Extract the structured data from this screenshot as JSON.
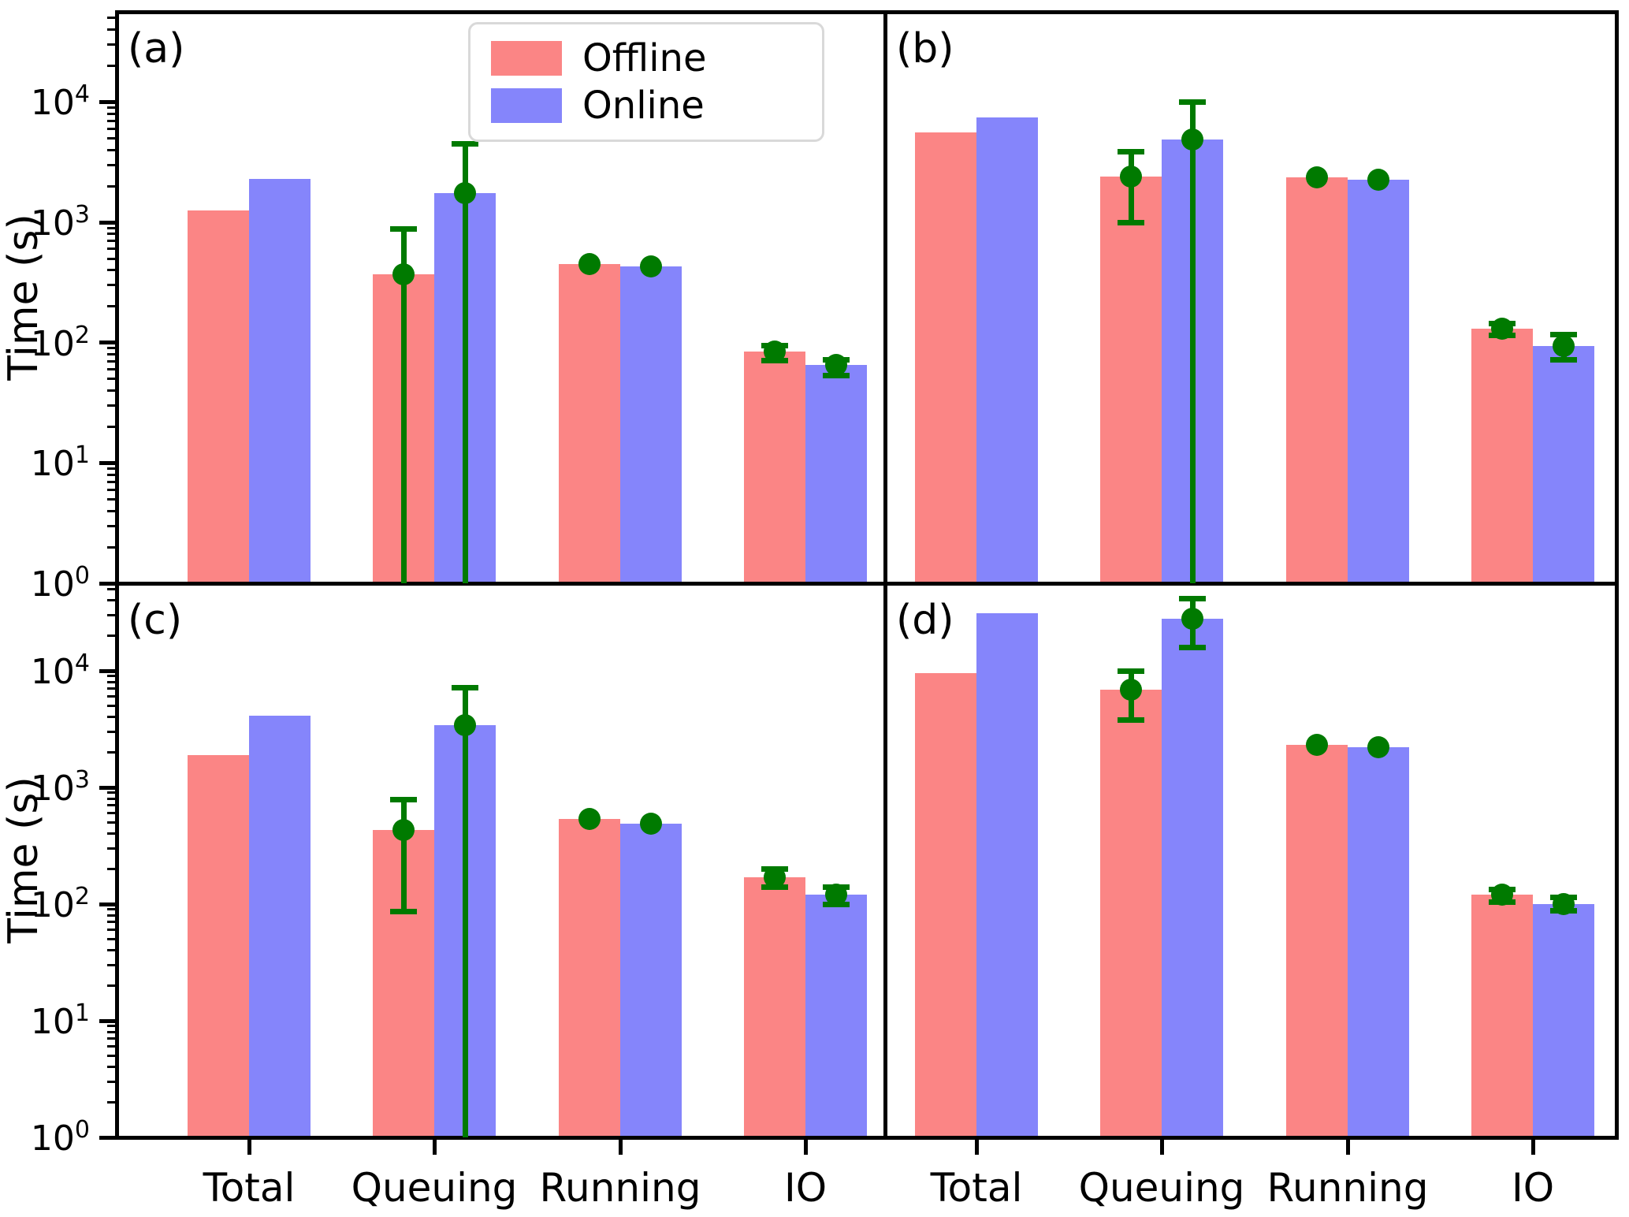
{
  "figure": {
    "ylabel": "Time (s)",
    "colors": {
      "offline_bar": "#fb8585",
      "online_bar": "#8585fb",
      "error_green": "#007a00",
      "axis": "#000000",
      "legend_border": "#d9d9d9"
    },
    "legend": {
      "items": [
        {
          "label": "Offline",
          "color": "#fb8585"
        },
        {
          "label": "Online",
          "color": "#8585fb"
        }
      ]
    }
  },
  "chart_data": {
    "type": "bar",
    "title": "",
    "xlabel": "",
    "ylabel": "Time (s)",
    "log_scale_y": true,
    "ylim": [
      1,
      56000
    ],
    "ytick_exponents": [
      0,
      1,
      2,
      3,
      4
    ],
    "grid": false,
    "legend_position": "upper area of panel (a)",
    "categories": [
      "Total",
      "Queuing",
      "Running",
      "IO"
    ],
    "marker_on_category": [
      false,
      true,
      true,
      true
    ],
    "panels": [
      {
        "label": "(a)",
        "series": [
          {
            "name": "Offline",
            "values": [
              1250,
              370,
              450,
              85
            ],
            "err_hi": [
              null,
              890,
              null,
              95
            ],
            "err_lo": [
              null,
              1,
              null,
              71
            ]
          },
          {
            "name": "Online",
            "values": [
              2300,
              1750,
              430,
              65
            ],
            "err_hi": [
              null,
              4500,
              null,
              73
            ],
            "err_lo": [
              null,
              1,
              null,
              54
            ]
          }
        ]
      },
      {
        "label": "(b)",
        "series": [
          {
            "name": "Offline",
            "values": [
              5600,
              2400,
              2350,
              130
            ],
            "err_hi": [
              null,
              3900,
              null,
              145
            ],
            "err_lo": [
              null,
              1000,
              null,
              115
            ]
          },
          {
            "name": "Online",
            "values": [
              7500,
              4900,
              2250,
              94
            ],
            "err_hi": [
              null,
              10000,
              null,
              117
            ],
            "err_lo": [
              null,
              1,
              null,
              73
            ]
          }
        ]
      },
      {
        "label": "(c)",
        "series": [
          {
            "name": "Offline",
            "values": [
              1900,
              430,
              540,
              170
            ],
            "err_hi": [
              null,
              790,
              null,
              200
            ],
            "err_lo": [
              null,
              87,
              null,
              140
            ]
          },
          {
            "name": "Online",
            "values": [
              4100,
              3400,
              490,
              120
            ],
            "err_hi": [
              null,
              7200,
              null,
              140
            ],
            "err_lo": [
              null,
              1,
              null,
              100
            ]
          }
        ]
      },
      {
        "label": "(d)",
        "series": [
          {
            "name": "Offline",
            "values": [
              9500,
              6900,
              2300,
              120
            ],
            "err_hi": [
              null,
              10000,
              null,
              135
            ],
            "err_lo": [
              null,
              3800,
              null,
              105
            ]
          },
          {
            "name": "Online",
            "values": [
              31000,
              28000,
              2200,
              100
            ],
            "err_hi": [
              null,
              42000,
              null,
              115
            ],
            "err_lo": [
              null,
              16000,
              null,
              88
            ]
          }
        ]
      }
    ]
  }
}
